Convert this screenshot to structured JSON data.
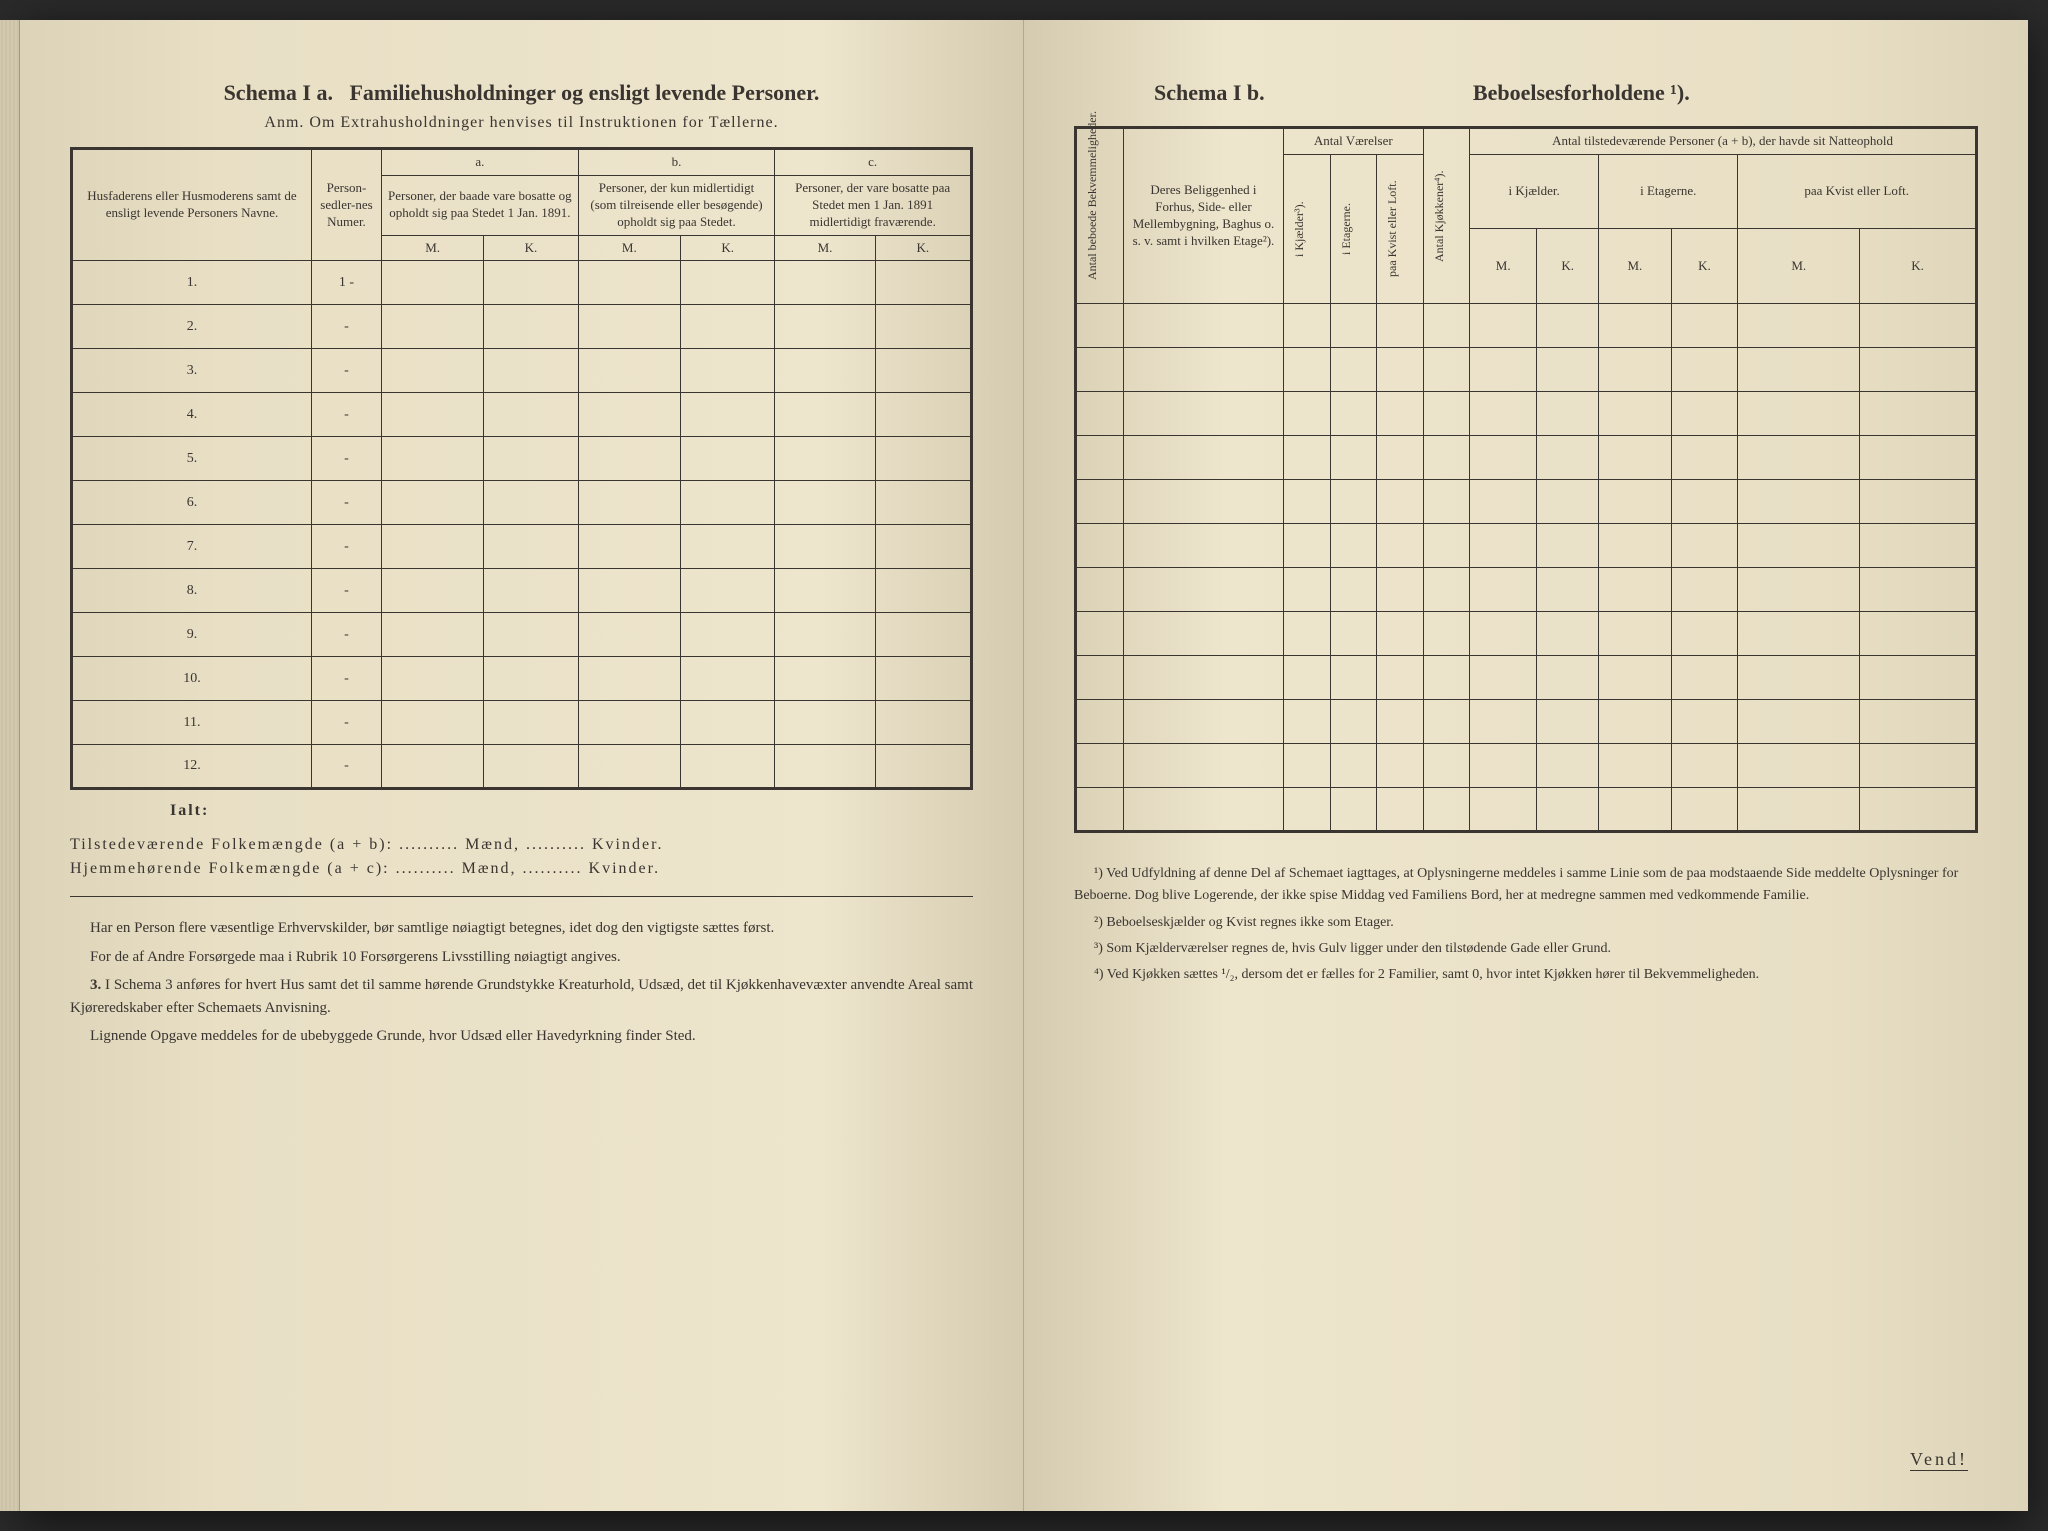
{
  "left": {
    "schema_label": "Schema I a.",
    "title": "Familiehusholdninger og ensligt levende Personer.",
    "subtitle": "Anm. Om Extrahusholdninger henvises til Instruktionen for Tællerne.",
    "col_name": "Husfaderens eller Husmoderens samt de ensligt levende Personers Navne.",
    "col_numer": "Person-sedler-nes Numer.",
    "group_a": "a.",
    "group_b": "b.",
    "group_c": "c.",
    "col_a_text": "Personer, der baade vare bosatte og opholdt sig paa Stedet 1 Jan. 1891.",
    "col_b_text": "Personer, der kun midlertidigt (som tilreisende eller besøgende) opholdt sig paa Stedet.",
    "col_c_text": "Personer, der vare bosatte paa Stedet men 1 Jan. 1891 midlertidigt fraværende.",
    "mk_m": "M.",
    "mk_k": "K.",
    "rows": [
      "1.",
      "2.",
      "3.",
      "4.",
      "5.",
      "6.",
      "7.",
      "8.",
      "9.",
      "10.",
      "11.",
      "12."
    ],
    "row_dashes": [
      "1 -",
      "-",
      "-",
      "-",
      "-",
      "-",
      "-",
      "-",
      "-",
      "-",
      "-",
      "-"
    ],
    "ialt": "Ialt:",
    "total1_label": "Tilstedeværende Folkemængde (a + b):",
    "total2_label": "Hjemmehørende Folkemængde (a + c):",
    "maend": "Mænd,",
    "kvinder": "Kvinder.",
    "para1": "Har en Person flere væsentlige Erhvervskilder, bør samtlige nøiagtigt betegnes, idet dog den vigtigste sættes først.",
    "para2": "For de af Andre Forsørgede maa i Rubrik 10 Forsørgerens Livsstilling nøiagtigt angives.",
    "para3_num": "3.",
    "para3": "I Schema 3 anføres for hvert Hus samt det til samme hørende Grundstykke Kreaturhold, Udsæd, det til Kjøkkenhavevæxter anvendte Areal samt Kjøreredskaber efter Schemaets Anvisning.",
    "para4": "Lignende Opgave meddeles for de ubebyggede Grunde, hvor Udsæd eller Havedyrkning finder Sted."
  },
  "right": {
    "schema_label": "Schema I b.",
    "title": "Beboelsesforholdene ¹).",
    "col_antal_bekv": "Antal beboede Bekvemmeligheder.",
    "col_beliggenhed": "Deres Beliggenhed i Forhus, Side- eller Mellembygning, Baghus o. s. v. samt i hvilken Etage²).",
    "group_vaerelser": "Antal Værelser",
    "col_kjaelder": "i Kjælder³).",
    "col_etagerne": "i Etagerne.",
    "col_kvist": "paa Kvist eller Loft.",
    "col_kjokkener": "Antal Kjøkkener⁴).",
    "group_personer": "Antal tilstedeværende Personer (a + b), der havde sit Natteophold",
    "col_p_kjaelder": "i Kjælder.",
    "col_p_etagerne": "i Etagerne.",
    "col_p_kvist": "paa Kvist eller Loft.",
    "mk_m": "M.",
    "mk_k": "K.",
    "num_rows": 12,
    "fn1": "¹) Ved Udfyldning af denne Del af Schemaet iagttages, at Oplysningerne meddeles i samme Linie som de paa modstaaende Side meddelte Oplysninger for Beboerne. Dog blive Logerende, der ikke spise Middag ved Familiens Bord, her at medregne sammen med vedkommende Familie.",
    "fn2": "²) Beboelseskjælder og Kvist regnes ikke som Etager.",
    "fn3": "³) Som Kjælderværelser regnes de, hvis Gulv ligger under den tilstødende Gade eller Grund.",
    "fn4": "⁴) Ved Kjøkken sættes ¹/₂, dersom det er fælles for 2 Familier, samt 0, hvor intet Kjøkken hører til Bekvemmeligheden.",
    "vend": "Vend!"
  },
  "colors": {
    "paper_base": "#ede5cc",
    "paper_shadow": "#d5cbb0",
    "ink": "#3a3530",
    "background": "#2a2a2a"
  }
}
